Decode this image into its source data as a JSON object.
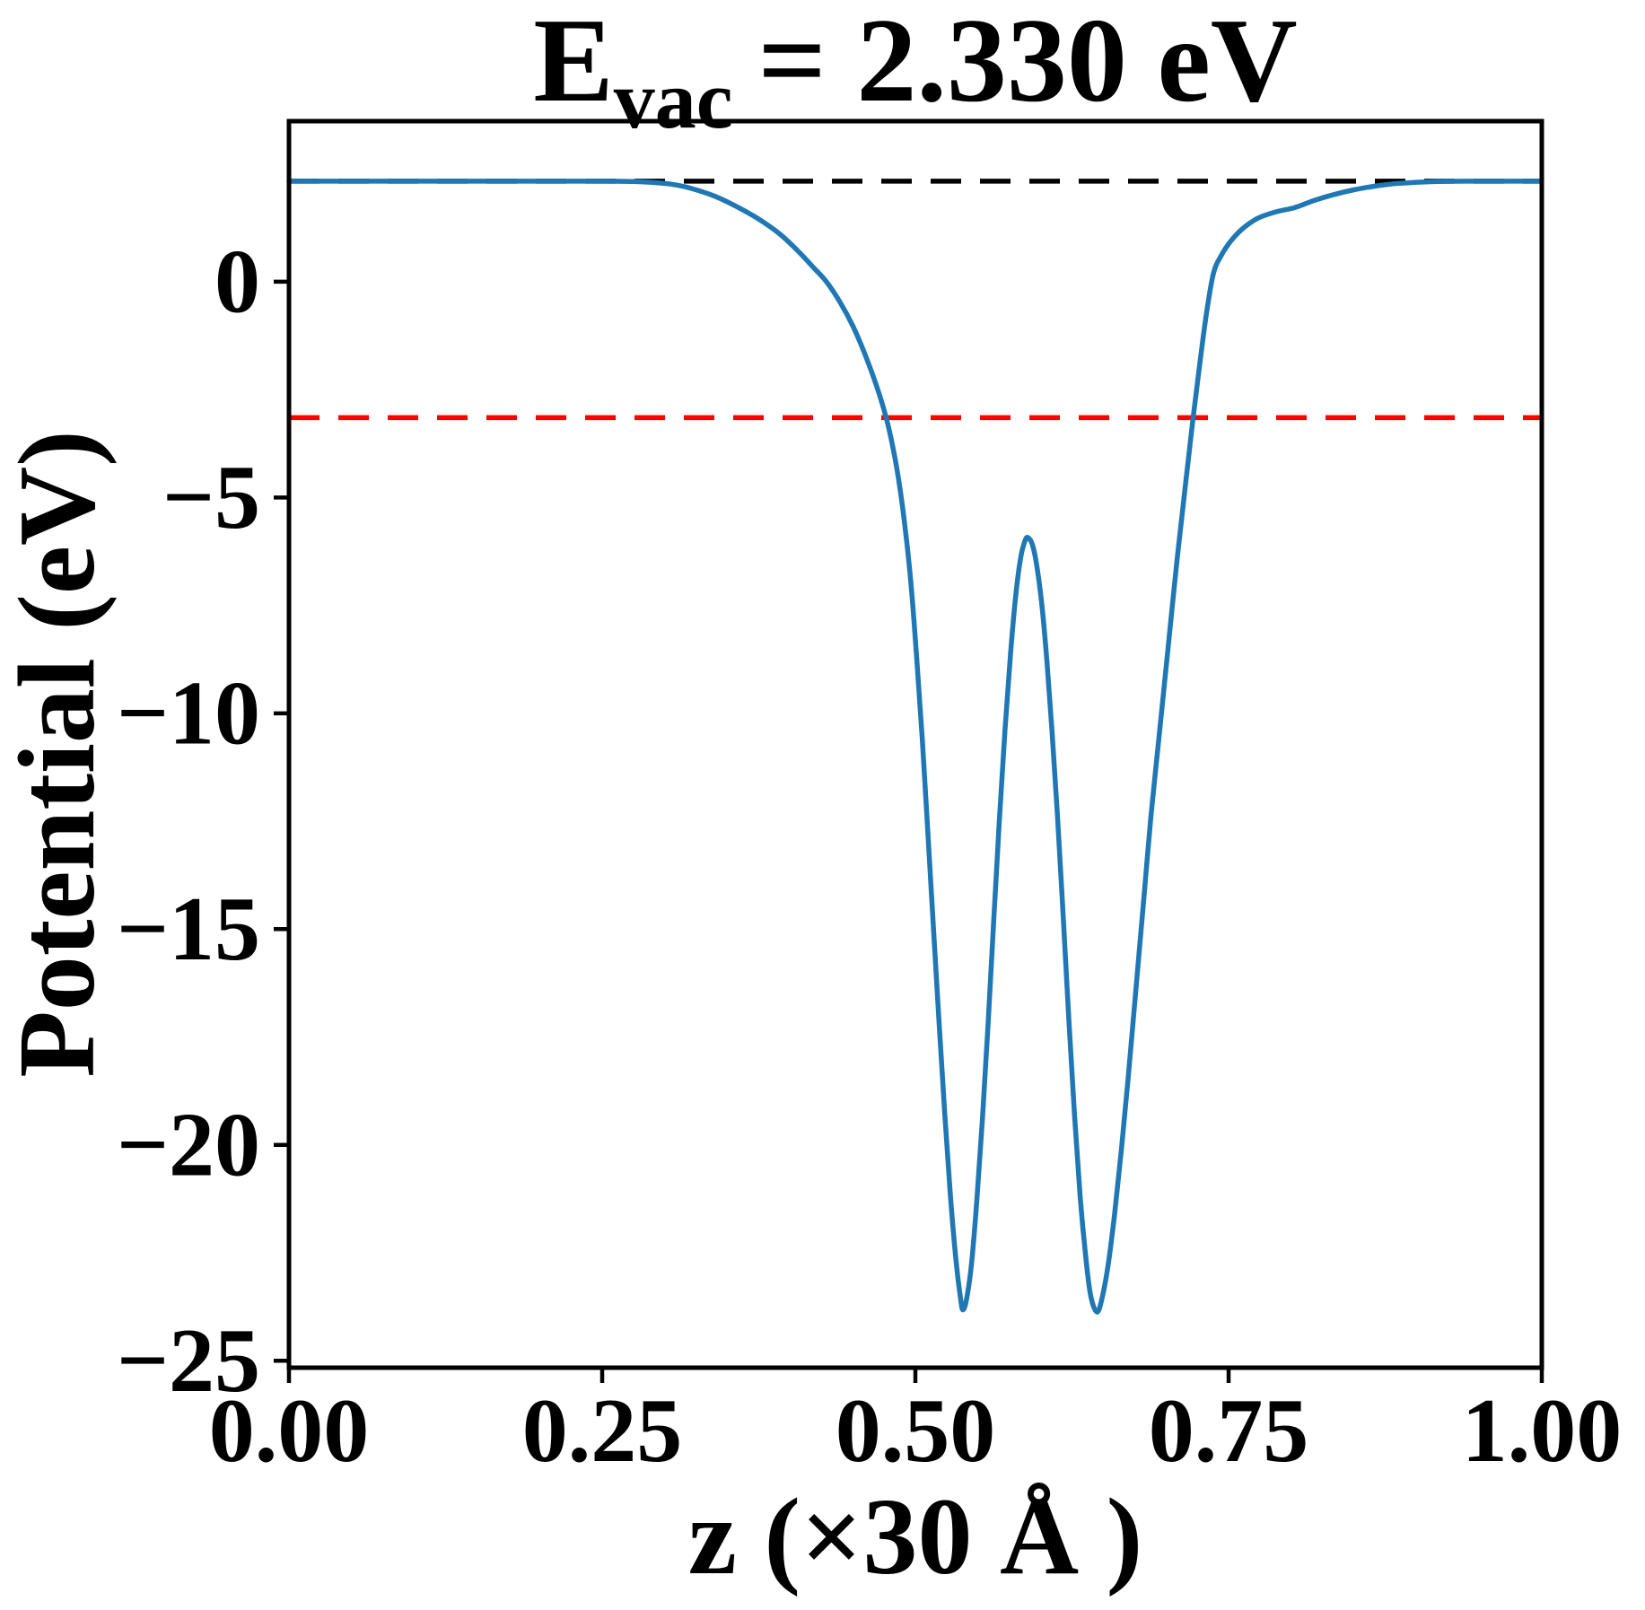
{
  "title": {
    "prefix": "E",
    "subscript": "vac",
    "suffix": "= 2.330 eV",
    "full": "E_vac = 2.330 eV"
  },
  "colors": {
    "curve": "#1f77b4",
    "vacuum_line": "#000000",
    "fermi_line": "#ff0000",
    "axes": "#000000",
    "background": "#ffffff"
  },
  "chart_data": {
    "type": "line",
    "title": "E_vac = 2.330 eV",
    "xlabel": "z (×30 Å )",
    "ylabel": "Potential (eV)",
    "xlim": [
      0,
      1
    ],
    "ylim": [
      -25.16,
      3.72
    ],
    "grid": false,
    "legend": null,
    "x_ticks": {
      "values": [
        0.0,
        0.25,
        0.5,
        0.75,
        1.0
      ],
      "labels": [
        "0.00",
        "0.25",
        "0.50",
        "0.75",
        "1.00"
      ]
    },
    "y_ticks": {
      "values": [
        0,
        -5,
        -10,
        -15,
        -20,
        -25
      ],
      "labels": [
        "0",
        "−5",
        "−10",
        "−15",
        "−20",
        "−25"
      ]
    },
    "reference_lines": [
      {
        "name": "vacuum-level",
        "label": "E_vac",
        "value": 2.33,
        "color": "#000000",
        "style": "dashed"
      },
      {
        "name": "fermi-level",
        "label": "E_F",
        "value": -3.15,
        "color": "#ff0000",
        "style": "dashed"
      }
    ],
    "series": [
      {
        "name": "planar-averaged-potential",
        "color": "#1f77b4",
        "x": [
          0.0,
          0.05,
          0.1,
          0.15,
          0.2,
          0.25,
          0.275,
          0.29,
          0.305,
          0.32,
          0.34,
          0.36,
          0.376,
          0.392,
          0.406,
          0.418,
          0.429,
          0.44,
          0.45,
          0.46,
          0.47,
          0.478,
          0.485,
          0.491,
          0.4965,
          0.501,
          0.5055,
          0.51,
          0.5145,
          0.519,
          0.5235,
          0.528,
          0.5325,
          0.536,
          0.538,
          0.541,
          0.545,
          0.549,
          0.5535,
          0.558,
          0.5625,
          0.567,
          0.5715,
          0.576,
          0.58,
          0.584,
          0.5875,
          0.59,
          0.5935,
          0.597,
          0.601,
          0.605,
          0.609,
          0.6135,
          0.618,
          0.6225,
          0.627,
          0.6315,
          0.636,
          0.64,
          0.645,
          0.649,
          0.654,
          0.659,
          0.6645,
          0.67,
          0.676,
          0.682,
          0.688,
          0.695,
          0.702,
          0.709,
          0.716,
          0.7215,
          0.727,
          0.7325,
          0.738,
          0.744,
          0.752,
          0.762,
          0.774,
          0.788,
          0.803,
          0.818,
          0.834,
          0.85,
          0.866,
          0.882,
          0.898,
          0.916,
          0.94,
          0.97,
          1.0
        ],
        "y": [
          2.33,
          2.33,
          2.33,
          2.33,
          2.33,
          2.33,
          2.32,
          2.3,
          2.26,
          2.17,
          1.98,
          1.7,
          1.43,
          1.1,
          0.72,
          0.35,
          0.0,
          -0.48,
          -1.02,
          -1.7,
          -2.5,
          -3.3,
          -4.3,
          -5.5,
          -7.0,
          -8.7,
          -10.6,
          -12.8,
          -15.0,
          -17.2,
          -19.3,
          -21.2,
          -22.7,
          -23.55,
          -23.82,
          -23.55,
          -22.7,
          -21.3,
          -19.4,
          -17.2,
          -14.8,
          -12.5,
          -10.4,
          -8.6,
          -7.3,
          -6.4,
          -6.0,
          -5.93,
          -6.1,
          -6.6,
          -7.5,
          -8.8,
          -10.4,
          -12.4,
          -14.7,
          -17.1,
          -19.3,
          -21.2,
          -22.6,
          -23.5,
          -23.87,
          -23.55,
          -22.75,
          -21.6,
          -20.1,
          -18.4,
          -16.4,
          -14.4,
          -12.4,
          -10.4,
          -8.4,
          -6.4,
          -4.6,
          -3.2,
          -1.9,
          -0.7,
          0.2,
          0.6,
          0.95,
          1.25,
          1.48,
          1.62,
          1.72,
          1.88,
          2.02,
          2.13,
          2.21,
          2.27,
          2.3,
          2.32,
          2.33,
          2.33,
          2.33
        ]
      }
    ]
  }
}
